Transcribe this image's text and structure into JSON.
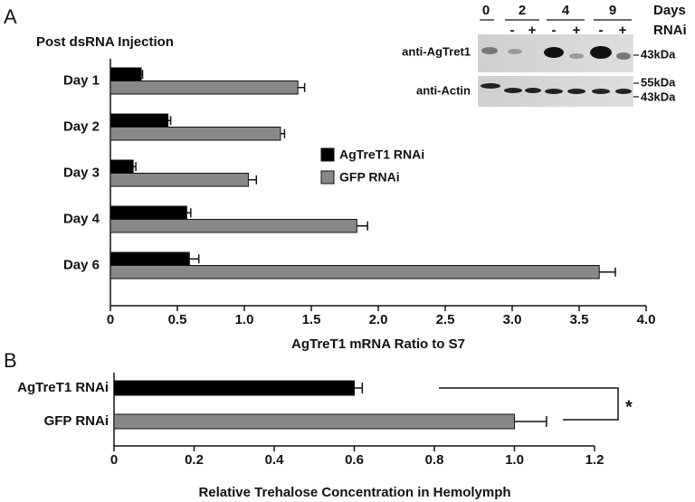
{
  "panels": [
    "A",
    "B"
  ],
  "blot": {
    "days_label": "Days",
    "rnai_label": "RNAi",
    "days": [
      "0",
      "2",
      "4",
      "9"
    ],
    "rnai_marks": [
      "-",
      "+",
      "-",
      "+",
      "-",
      "+"
    ],
    "rows": [
      "anti-AgTret1",
      "anti-Actin"
    ],
    "markers": [
      "43kDa",
      "55kDa",
      "43kDa"
    ]
  },
  "chart_data": [
    {
      "type": "grouped-hbar",
      "title": "Post dsRNA Injection",
      "x_label": "AgTreT1 mRNA Ratio to S7",
      "categories": [
        "Day 1",
        "Day 2",
        "Day 3",
        "Day 4",
        "Day 6"
      ],
      "series": [
        {
          "name": "AgTreT1 RNAi",
          "color": "#000000",
          "values": [
            0.23,
            0.43,
            0.17,
            0.57,
            0.59
          ],
          "errors": [
            0.01,
            0.02,
            0.02,
            0.03,
            0.07
          ]
        },
        {
          "name": "GFP RNAi",
          "color": "#888888",
          "values": [
            1.4,
            1.27,
            1.03,
            1.84,
            3.65
          ],
          "errors": [
            0.05,
            0.03,
            0.06,
            0.08,
            0.12
          ]
        }
      ],
      "xlim": [
        0,
        4
      ],
      "xticks": [
        0,
        0.5,
        {
          "value": 1,
          "label": "1.0"
        },
        1.5,
        {
          "value": 2,
          "label": "2.0"
        },
        2.5,
        {
          "value": 3,
          "label": "3.0"
        },
        3.5,
        {
          "value": 4,
          "label": "4.0"
        }
      ],
      "legend": "center"
    },
    {
      "type": "hbar",
      "x_label": "Relative Trehalose Concentration in Hemolymph",
      "categories": [
        "AgTreT1 RNAi",
        "GFP RNAi"
      ],
      "values": [
        0.6,
        1.0
      ],
      "errors": [
        0.02,
        0.08
      ],
      "colors": [
        "#000000",
        "#888888"
      ],
      "xlim": [
        0,
        1.2
      ],
      "xticks": [
        0,
        0.2,
        0.4,
        0.6,
        0.8,
        {
          "value": 1,
          "label": "1.0"
        },
        1.2
      ],
      "annotations": [
        "*"
      ]
    }
  ]
}
